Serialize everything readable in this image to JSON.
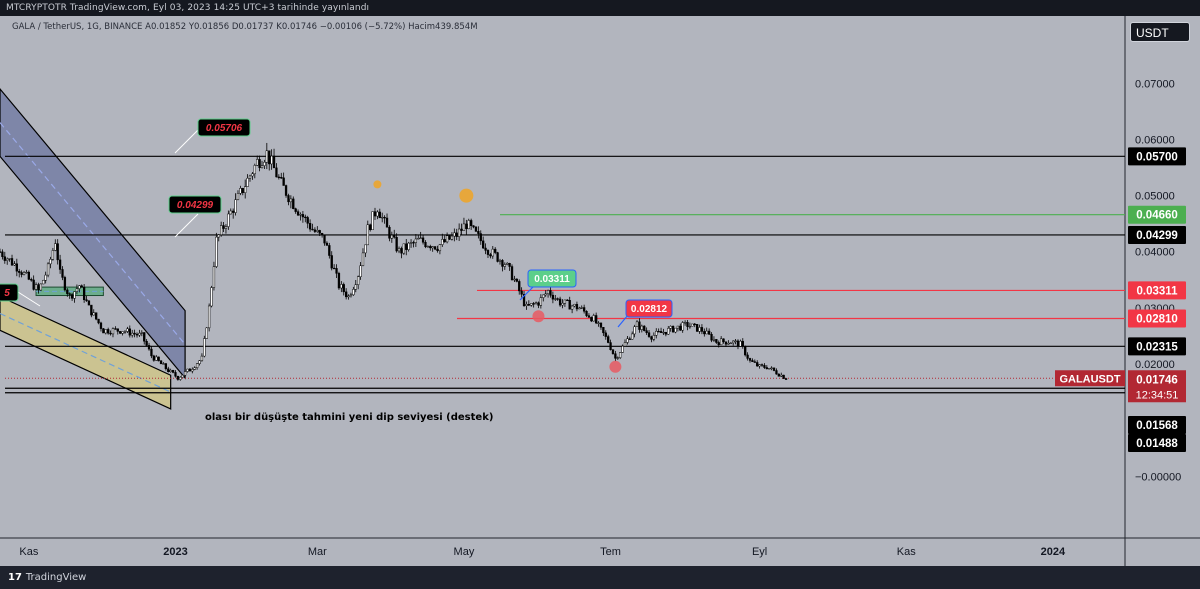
{
  "header": {
    "caption": "MTCRYPTOTR TradingView.com, Eyl 03, 2023 14:25 UTC+3 tarihinde yayınlandı",
    "symbol": "GALA / TetherUS, 1G, BINANCE",
    "open": "A0.01852",
    "high": "Y0.01856",
    "low": "D0.01737",
    "close": "K0.01746",
    "change": "−0.00106 (−5.72%)",
    "volume": "Hacim439.854M"
  },
  "price_axis": {
    "currency": "USDT",
    "ticks": [
      "0.07000",
      "0.06000",
      "0.05000",
      "0.04000",
      "0.03000",
      "0.02000",
      "−0.00000"
    ]
  },
  "time_axis": {
    "ticks": [
      "Kas",
      "2023",
      "Mar",
      "May",
      "Tem",
      "Eyl",
      "Kas",
      "2024"
    ]
  },
  "levels": [
    {
      "price": 0.057,
      "label": "0.05700",
      "color": "#000000",
      "bg": "#000000",
      "fg": "#ffffff"
    },
    {
      "price": 0.0466,
      "label": "0.04660",
      "color": "#4caf50",
      "bg": "#4caf50",
      "fg": "#ffffff"
    },
    {
      "price": 0.04299,
      "label": "0.04299",
      "color": "#000000",
      "bg": "#000000",
      "fg": "#ffffff"
    },
    {
      "price": 0.03311,
      "label": "0.03311",
      "color": "#f23645",
      "bg": "#f23645",
      "fg": "#ffffff"
    },
    {
      "price": 0.0281,
      "label": "0.02810",
      "color": "#f23645",
      "bg": "#f23645",
      "fg": "#ffffff"
    },
    {
      "price": 0.02315,
      "label": "0.02315",
      "color": "#000000",
      "bg": "#000000",
      "fg": "#ffffff"
    },
    {
      "price": 0.01568,
      "label": "0.01568",
      "color": "#000000",
      "bg": "#000000",
      "fg": "#ffffff"
    },
    {
      "price": 0.01488,
      "label": "0.01488",
      "color": "#000000",
      "bg": "#000000",
      "fg": "#ffffff"
    }
  ],
  "current": {
    "symbol": "GALAUSDT",
    "price": "0.01746",
    "countdown": "12:34:51",
    "color": "#b22833"
  },
  "annotations": {
    "callout_high": "0.05706",
    "callout_mid": "0.04299",
    "callout_red_left": "5",
    "callout_green": "0.03311",
    "callout_red": "0.02812",
    "support_note": "olası bir düşüşte tahmini yeni dip seviyesi (destek)"
  },
  "chart_data": {
    "type": "candlestick",
    "symbol": "GALA / TetherUS",
    "interval": "1G",
    "exchange": "BINANCE",
    "x_range": [
      "2022-10-20",
      "2024-01-31"
    ],
    "ylim": [
      -0.011,
      0.082
    ],
    "y_ticks": [
      0.07,
      0.06,
      0.05,
      0.04,
      0.03,
      0.02,
      0.0
    ],
    "path": [
      [
        "2022-10-20",
        0.04
      ],
      [
        "2022-10-28",
        0.037
      ],
      [
        "2022-11-05",
        0.033
      ],
      [
        "2022-11-09",
        0.037
      ],
      [
        "2022-11-12",
        0.042
      ],
      [
        "2022-11-14",
        0.036
      ],
      [
        "2022-11-18",
        0.032
      ],
      [
        "2022-11-22",
        0.034
      ],
      [
        "2022-11-26",
        0.03
      ],
      [
        "2022-12-02",
        0.026
      ],
      [
        "2022-12-10",
        0.026
      ],
      [
        "2022-12-18",
        0.025
      ],
      [
        "2022-12-22",
        0.0215
      ],
      [
        "2022-12-30",
        0.0185
      ],
      [
        "2023-01-02",
        0.0176
      ],
      [
        "2023-01-07",
        0.019
      ],
      [
        "2023-01-12",
        0.021
      ],
      [
        "2023-01-15",
        0.03
      ],
      [
        "2023-01-18",
        0.042
      ],
      [
        "2023-01-24",
        0.047
      ],
      [
        "2023-01-30",
        0.052
      ],
      [
        "2023-02-04",
        0.056
      ],
      [
        "2023-02-08",
        0.0575
      ],
      [
        "2023-02-14",
        0.052
      ],
      [
        "2023-02-20",
        0.048
      ],
      [
        "2023-02-27",
        0.044
      ],
      [
        "2023-03-04",
        0.042
      ],
      [
        "2023-03-10",
        0.034
      ],
      [
        "2023-03-14",
        0.032
      ],
      [
        "2023-03-18",
        0.036
      ],
      [
        "2023-03-22",
        0.044
      ],
      [
        "2023-03-26",
        0.048
      ],
      [
        "2023-03-30",
        0.044
      ],
      [
        "2023-04-04",
        0.04
      ],
      [
        "2023-04-12",
        0.042
      ],
      [
        "2023-04-20",
        0.041
      ],
      [
        "2023-04-28",
        0.043
      ],
      [
        "2023-05-02",
        0.045
      ],
      [
        "2023-05-06",
        0.043
      ],
      [
        "2023-05-12",
        0.04
      ],
      [
        "2023-05-18",
        0.038
      ],
      [
        "2023-05-22",
        0.035
      ],
      [
        "2023-05-27",
        0.03
      ],
      [
        "2023-06-01",
        0.031
      ],
      [
        "2023-06-05",
        0.033
      ],
      [
        "2023-06-10",
        0.031
      ],
      [
        "2023-06-18",
        0.03
      ],
      [
        "2023-06-24",
        0.028
      ],
      [
        "2023-06-30",
        0.024
      ],
      [
        "2023-07-03",
        0.021
      ],
      [
        "2023-07-06",
        0.023
      ],
      [
        "2023-07-12",
        0.027
      ],
      [
        "2023-07-18",
        0.025
      ],
      [
        "2023-07-25",
        0.026
      ],
      [
        "2023-08-02",
        0.027
      ],
      [
        "2023-08-08",
        0.026
      ],
      [
        "2023-08-14",
        0.024
      ],
      [
        "2023-08-20",
        0.024
      ],
      [
        "2023-08-24",
        0.0235
      ],
      [
        "2023-08-28",
        0.0205
      ],
      [
        "2023-09-01",
        0.0195
      ],
      [
        "2023-09-04",
        0.0195
      ],
      [
        "2023-09-08",
        0.0185
      ],
      [
        "2023-09-12",
        0.0175
      ]
    ],
    "markers": [
      {
        "date": "2023-03-26",
        "price": 0.052,
        "color": "#f0a424",
        "r": 4
      },
      {
        "date": "2023-05-02",
        "price": 0.05,
        "color": "#f0a424",
        "r": 7
      },
      {
        "date": "2023-06-01",
        "price": 0.0285,
        "color": "#e85a63",
        "r": 6
      },
      {
        "date": "2023-07-03",
        "price": 0.0195,
        "color": "#e85a63",
        "r": 6
      }
    ],
    "channels": [
      {
        "from": [
          "2022-10-20",
          0.063
        ],
        "to": [
          "2023-01-05",
          0.0235
        ],
        "width": 0.006,
        "fill": "#3d4d8f",
        "mid": "#9aa9e8"
      },
      {
        "from": [
          "2022-10-20",
          0.029
        ],
        "to": [
          "2022-12-30",
          0.015
        ],
        "width": 0.003,
        "fill": "#e8d45a",
        "mid": "#6fa1d8"
      }
    ],
    "green_box": {
      "from": [
        "2022-11-04",
        0.0337
      ],
      "to": [
        "2022-12-02",
        0.0322
      ]
    },
    "grid": false
  }
}
